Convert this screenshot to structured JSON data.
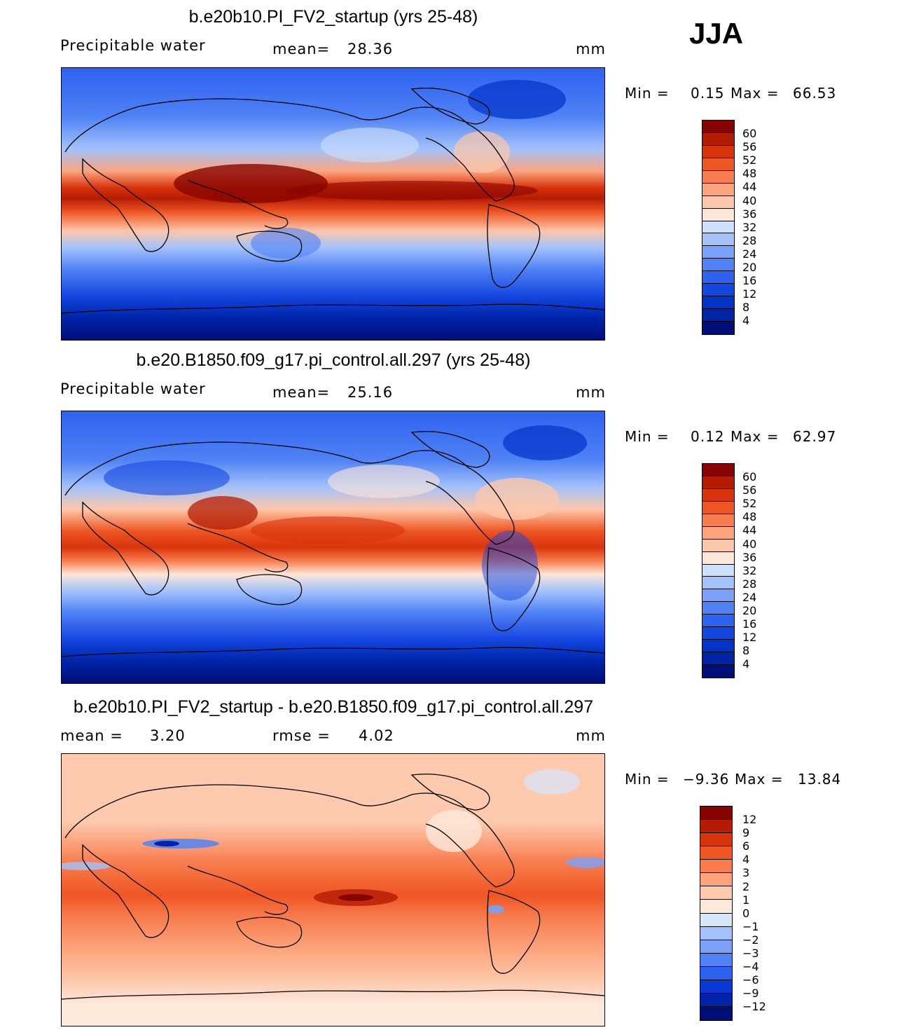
{
  "season": "JJA",
  "palette_main": [
    "#000e78",
    "#0024a8",
    "#0033c8",
    "#1446e0",
    "#2e62f0",
    "#5082f5",
    "#7aa2f8",
    "#a4c2fa",
    "#cde0fc",
    "#fde6da",
    "#fdc7ab",
    "#fca47d",
    "#f87c4d",
    "#ee5624",
    "#d8340c",
    "#b41c04",
    "#880400"
  ],
  "palette_diff": [
    "#000e78",
    "#0024a8",
    "#0a38d4",
    "#2e62f0",
    "#5082f5",
    "#7aa2f8",
    "#a4c2fa",
    "#d6e6fd",
    "#fde8dc",
    "#fdcaae",
    "#fca47d",
    "#f87c4d",
    "#ee5624",
    "#d8340c",
    "#b41c04",
    "#880400"
  ],
  "panels": [
    {
      "title": "b.e20b10.PI_FV2_startup (yrs 25-48)",
      "left_label": "Precipitable  water",
      "mid_label": "mean=",
      "mid_value": "28.36",
      "units": "mm",
      "min_label": "Min  =",
      "min_value": "0.15",
      "max_label": "Max  =",
      "max_value": "66.53",
      "colorbar_labels": [
        "60",
        "56",
        "52",
        "48",
        "44",
        "40",
        "36",
        "32",
        "28",
        "24",
        "20",
        "16",
        "12",
        "8",
        "4"
      ]
    },
    {
      "title": "b.e20.B1850.f09_g17.pi_control.all.297 (yrs 25-48)",
      "left_label": "Precipitable  water",
      "mid_label": "mean=",
      "mid_value": "25.16",
      "units": "mm",
      "min_label": "Min  =",
      "min_value": "0.12",
      "max_label": "Max  =",
      "max_value": "62.97",
      "colorbar_labels": [
        "60",
        "56",
        "52",
        "48",
        "44",
        "40",
        "36",
        "32",
        "28",
        "24",
        "20",
        "16",
        "12",
        "8",
        "4"
      ]
    },
    {
      "title": "b.e20b10.PI_FV2_startup - b.e20.B1850.f09_g17.pi_control.all.297",
      "left_label": "mean  =",
      "left_value": "3.20",
      "mid_label": "rmse  =",
      "mid_value": "4.02",
      "units": "mm",
      "min_label": "Min  =",
      "min_value": "−9.36",
      "max_label": "Max  =",
      "max_value": "13.84",
      "colorbar_labels": [
        "12",
        "9",
        "6",
        "4",
        "3",
        "2",
        "1",
        "0",
        "−1",
        "−2",
        "−3",
        "−4",
        "−6",
        "−9",
        "−12"
      ]
    }
  ]
}
